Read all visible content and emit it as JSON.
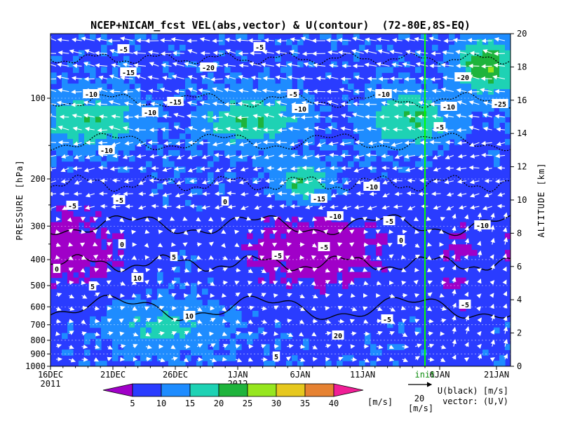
{
  "chart_data": {
    "type": "heatmap",
    "title": "NCEP+NICAM_fcst VEL(abs,vector) & U(contour)  (72-80E,8S-EQ)",
    "ylabel": "PRESSURE [hPa]",
    "y2label": "ALTITUDE [km]",
    "y_pressure_ticks": [
      "100",
      "200",
      "300",
      "400",
      "500",
      "600",
      "700",
      "800",
      "900",
      "1000"
    ],
    "y_altitude_ticks": [
      "0",
      "2",
      "4",
      "6",
      "8",
      "10",
      "12",
      "14",
      "16",
      "18",
      "20"
    ],
    "x_ticks": [
      "16DEC",
      "21DEC",
      "26DEC",
      "1JAN",
      "6JAN",
      "11JAN",
      "6JAN",
      "11JAN",
      "16JAN",
      "21JAN"
    ],
    "x_year_labels": [
      "2011",
      "2012"
    ],
    "init_label": "init",
    "init_tick_label": "16JAN",
    "init_line_color": "#00ff00",
    "colorbar": {
      "levels": [
        "5",
        "10",
        "15",
        "20",
        "25",
        "30",
        "35",
        "40"
      ],
      "colors": [
        "#a000c8",
        "#2a3cff",
        "#1e8cff",
        "#1ed2b4",
        "#1eb43c",
        "#96e61e",
        "#e6c81e",
        "#e68232",
        "#f01e96"
      ],
      "unit": "[m/s]"
    },
    "vector_key": {
      "value": "20",
      "unit": "[m/s]"
    },
    "legend_text": [
      "U(black) [m/s]",
      "vector: (U,V)"
    ],
    "contour_labels": [
      "-5",
      "-10",
      "-15",
      "-20",
      "-25",
      "0",
      "5",
      "10",
      "20"
    ],
    "ylim_altitude_km": [
      0,
      20
    ],
    "grid": true
  }
}
